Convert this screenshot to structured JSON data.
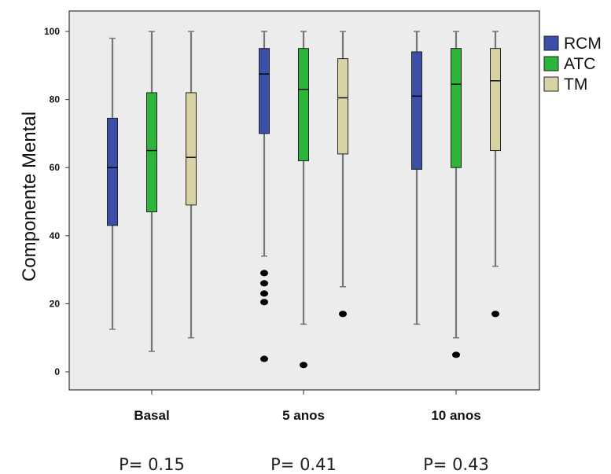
{
  "chart_data": {
    "type": "boxplot",
    "ylabel": "Componente Mental",
    "ylim": [
      0,
      100
    ],
    "yticks": [
      0,
      20,
      40,
      60,
      80,
      100
    ],
    "categories": [
      "Basal",
      "5 anos",
      "10 anos"
    ],
    "p_values": [
      "P= 0.15",
      "P= 0.41",
      "P= 0.43"
    ],
    "legend_position": "top-right",
    "series": [
      {
        "name": "RCM",
        "color": "#3b4fa6",
        "boxes": [
          {
            "whisker_low": 12.5,
            "q1": 43,
            "median": 60,
            "q3": 74.5,
            "whisker_high": 98,
            "outliers": []
          },
          {
            "whisker_low": 34,
            "q1": 70,
            "median": 87.5,
            "q3": 95,
            "whisker_high": 100,
            "outliers": [
              29,
              26,
              23,
              20.5,
              3.8
            ]
          },
          {
            "whisker_low": 14,
            "q1": 59.5,
            "median": 81,
            "q3": 94,
            "whisker_high": 100,
            "outliers": []
          }
        ]
      },
      {
        "name": "ATC",
        "color": "#2db43b",
        "boxes": [
          {
            "whisker_low": 6,
            "q1": 47,
            "median": 65,
            "q3": 82,
            "whisker_high": 100,
            "outliers": []
          },
          {
            "whisker_low": 14,
            "q1": 62,
            "median": 83,
            "q3": 95,
            "whisker_high": 100,
            "outliers": [
              2
            ]
          },
          {
            "whisker_low": 10,
            "q1": 60,
            "median": 84.5,
            "q3": 95,
            "whisker_high": 100,
            "outliers": [
              5
            ]
          }
        ]
      },
      {
        "name": "TM",
        "color": "#d8d2a4",
        "boxes": [
          {
            "whisker_low": 10,
            "q1": 49,
            "median": 63,
            "q3": 82,
            "whisker_high": 100,
            "outliers": []
          },
          {
            "whisker_low": 25,
            "q1": 64,
            "median": 80.5,
            "q3": 92,
            "whisker_high": 100,
            "outliers": [
              17
            ]
          },
          {
            "whisker_low": 31,
            "q1": 65,
            "median": 85.5,
            "q3": 95,
            "whisker_high": 100,
            "outliers": [
              17
            ]
          }
        ]
      }
    ]
  }
}
